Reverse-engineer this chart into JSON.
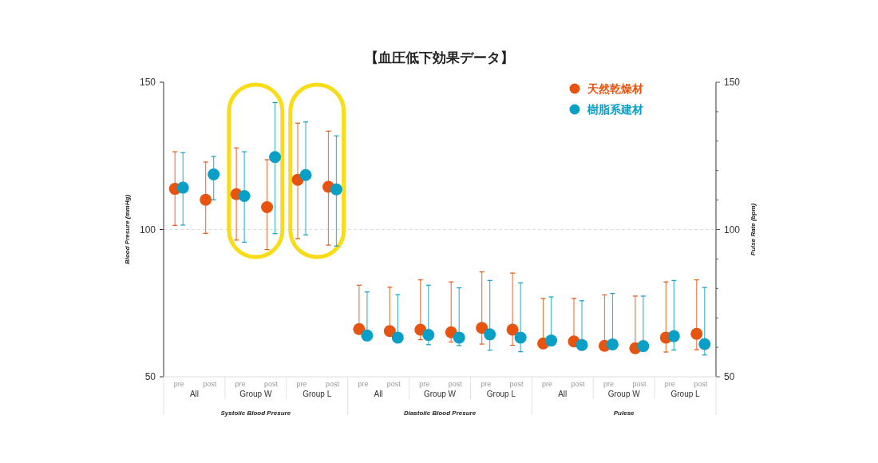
{
  "chart_data": {
    "type": "scatter",
    "title": "【血圧低下効果データ】",
    "categories": [
      "pre",
      "post",
      "pre",
      "post",
      "pre",
      "post",
      "pre",
      "post",
      "pre",
      "post",
      "pre",
      "post",
      "pre",
      "post",
      "pre",
      "post",
      "pre",
      "post"
    ],
    "annotations": [
      "All",
      "Group W",
      "Group L",
      "All",
      "Group W",
      "Group L",
      "All",
      "Group W",
      "Group L",
      "Systolic Blood Presure",
      "Diastolic Blood Presure",
      "Pulese"
    ],
    "series": [
      {
        "name": "天然乾燥材",
        "color": "#e6540f",
        "values": [
          113.8,
          110.1,
          112.0,
          107.6,
          116.9,
          114.5,
          66.2,
          65.5,
          66.0,
          65.1,
          66.6,
          66.0,
          null,
          null,
          null,
          null,
          null,
          null
        ],
        "errors": [
          [
            101.4,
            126.4
          ],
          [
            98.7,
            122.9
          ],
          [
            96.4,
            127.7
          ],
          [
            93.2,
            123.7
          ],
          [
            96.9,
            136.1
          ],
          [
            94.7,
            133.4
          ],
          [
            66.2,
            81.1
          ],
          [
            65.5,
            80.4
          ],
          [
            62.6,
            82.9
          ],
          [
            61.8,
            82.2
          ],
          [
            61.1,
            85.6
          ],
          [
            60.7,
            85.2
          ],
          null,
          null,
          null,
          null,
          null,
          null
        ]
      },
      {
        "name": "樹脂系建材",
        "color": "#0a9fc6",
        "values": [
          114.2,
          118.7,
          111.4,
          124.6,
          118.5,
          113.6,
          64.0,
          63.3,
          64.2,
          63.3,
          64.4,
          63.3,
          null,
          null,
          null,
          null,
          null,
          null
        ],
        "errors": [
          [
            101.5,
            126.1
          ],
          [
            110.1,
            124.8
          ],
          [
            95.7,
            126.4
          ],
          [
            98.6,
            143.1
          ],
          [
            98.2,
            136.5
          ],
          [
            94.4,
            131.8
          ],
          [
            64.0,
            78.8
          ],
          [
            63.3,
            77.9
          ],
          [
            60.9,
            81.1
          ],
          [
            60.6,
            80.2
          ],
          [
            59.0,
            82.7
          ],
          [
            58.5,
            81.9
          ],
          null,
          null,
          null,
          null,
          null,
          null
        ]
      },
      {
        "color": "#e6540f",
        "axis": "y2",
        "values": [
          null,
          null,
          null,
          null,
          null,
          null,
          null,
          null,
          null,
          null,
          null,
          null,
          61.3,
          62.0,
          60.5,
          59.7,
          63.3,
          64.6
        ],
        "errors": [
          null,
          null,
          null,
          null,
          null,
          null,
          null,
          null,
          null,
          null,
          null,
          null,
          [
            61.3,
            76.6
          ],
          [
            62.0,
            76.6
          ],
          [
            60.5,
            77.8
          ],
          [
            59.7,
            77.4
          ],
          [
            58.4,
            82.2
          ],
          [
            59.2,
            82.9
          ]
        ]
      },
      {
        "color": "#0a9fc6",
        "axis": "y2",
        "values": [
          null,
          null,
          null,
          null,
          null,
          null,
          null,
          null,
          null,
          null,
          null,
          null,
          62.3,
          60.8,
          61.0,
          60.4,
          63.8,
          61.1
        ],
        "errors": [
          null,
          null,
          null,
          null,
          null,
          null,
          null,
          null,
          null,
          null,
          null,
          null,
          [
            62.3,
            77.1
          ],
          [
            60.8,
            75.8
          ],
          [
            61.0,
            78.3
          ],
          [
            60.4,
            77.4
          ],
          [
            59.1,
            82.7
          ],
          [
            57.4,
            80.3
          ]
        ]
      }
    ],
    "ylabel": "Blood Presure (mmHg)",
    "y2label": "Pulse Rate (bpm)",
    "ylim": [
      50,
      150
    ],
    "yticks": [
      50,
      100,
      150
    ],
    "y2lim": [
      50,
      150
    ],
    "y2ticks": [
      50,
      {
        "value": 60,
        "label": null
      },
      {
        "value": 70,
        "label": null
      },
      {
        "value": 80,
        "label": null
      },
      {
        "value": 90,
        "label": null
      },
      100,
      {
        "value": 110,
        "label": null
      },
      {
        "value": 120,
        "label": null
      },
      {
        "value": 130,
        "label": null
      },
      {
        "value": 140,
        "label": null
      },
      150
    ],
    "ref_lines": [
      {
        "axis": "y",
        "value": 100,
        "color": "#dddddd",
        "line_style": "dashed"
      }
    ],
    "marker": "circle",
    "legend": "top right"
  }
}
